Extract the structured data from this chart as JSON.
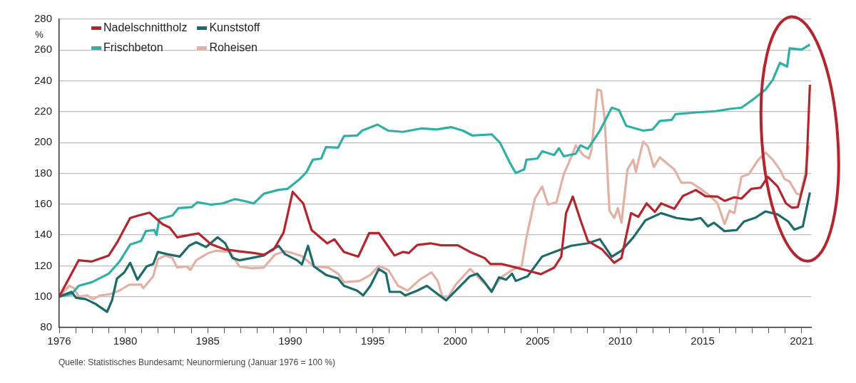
{
  "chart_data": {
    "type": "line",
    "ylabel": "%",
    "annotations": [
      "Quelle: Statistisches Bundesamt; Neunormierung (Januar 1976 = 100 %)"
    ],
    "xlim": [
      1976,
      2021.57
    ],
    "xticks": [
      1976,
      {
        "value": 1977,
        "label": null
      },
      {
        "value": 1978,
        "label": null
      },
      {
        "value": 1979,
        "label": null
      },
      1980,
      {
        "value": 1981,
        "label": null
      },
      {
        "value": 1982,
        "label": null
      },
      {
        "value": 1983,
        "label": null
      },
      {
        "value": 1984,
        "label": null
      },
      1985,
      {
        "value": 1986,
        "label": null
      },
      {
        "value": 1987,
        "label": null
      },
      {
        "value": 1988,
        "label": null
      },
      {
        "value": 1989,
        "label": null
      },
      1990,
      {
        "value": 1991,
        "label": null
      },
      {
        "value": 1992,
        "label": null
      },
      {
        "value": 1993,
        "label": null
      },
      {
        "value": 1994,
        "label": null
      },
      1995,
      {
        "value": 1996,
        "label": null
      },
      {
        "value": 1997,
        "label": null
      },
      {
        "value": 1998,
        "label": null
      },
      {
        "value": 1999,
        "label": null
      },
      2000,
      {
        "value": 2001,
        "label": null
      },
      {
        "value": 2002,
        "label": null
      },
      {
        "value": 2003,
        "label": null
      },
      {
        "value": 2004,
        "label": null
      },
      2005,
      {
        "value": 2006,
        "label": null
      },
      {
        "value": 2007,
        "label": null
      },
      {
        "value": 2008,
        "label": null
      },
      {
        "value": 2009,
        "label": null
      },
      2010,
      {
        "value": 2011,
        "label": null
      },
      {
        "value": 2012,
        "label": null
      },
      {
        "value": 2013,
        "label": null
      },
      {
        "value": 2014,
        "label": null
      },
      2015,
      {
        "value": 2016,
        "label": null
      },
      {
        "value": 2017,
        "label": null
      },
      {
        "value": 2018,
        "label": null
      },
      {
        "value": 2019,
        "label": null
      },
      {
        "value": 2020,
        "label": null
      },
      2021
    ],
    "ylim": [
      80,
      280
    ],
    "yticks": [
      80,
      100,
      120,
      140,
      160,
      180,
      200,
      220,
      240,
      260,
      280
    ],
    "grid": "y",
    "legend": "top left",
    "marker": "none",
    "line_style": "solid",
    "series": [
      {
        "name": "Nadelschnittholz",
        "color": "#b3262e",
        "x": [
          1976.0,
          1977.18,
          1977.98,
          1979.0,
          1979.5,
          1980.3,
          1980.8,
          1981.47,
          1982.27,
          1982.7,
          1983.15,
          1983.87,
          1984.45,
          1985.2,
          1986.06,
          1986.93,
          1987.8,
          1988.4,
          1989.0,
          1989.6,
          1990.15,
          1990.79,
          1991.3,
          1992.24,
          1992.68,
          1993.26,
          1994.13,
          1994.79,
          1995.37,
          1996.32,
          1996.83,
          1997.19,
          1997.7,
          1998.5,
          1999.16,
          2000.17,
          2000.9,
          2001.78,
          2002.14,
          2002.8,
          2003.52,
          2004.25,
          2005.2,
          2006.0,
          2006.43,
          2006.72,
          2007.13,
          2007.6,
          2008.04,
          2008.91,
          2009.64,
          2010.08,
          2010.66,
          2011.1,
          2011.6,
          2012.1,
          2012.48,
          2013.28,
          2013.79,
          2014.59,
          2015.17,
          2015.9,
          2016.33,
          2016.92,
          2017.35,
          2017.94,
          2018.52,
          2018.95,
          2019.54,
          2020.05,
          2020.41,
          2020.77,
          2021.28,
          2021.5
        ],
        "values": [
          100,
          123.6,
          122.8,
          126.7,
          135,
          151,
          152.6,
          154.5,
          147,
          144.8,
          138.5,
          140,
          141,
          134,
          130.6,
          129.4,
          128.3,
          127.2,
          130.6,
          141.6,
          168,
          160.5,
          143.2,
          134.6,
          137.2,
          129,
          126,
          141.3,
          141.3,
          126.7,
          129,
          128.3,
          133.5,
          134.6,
          133.3,
          133.3,
          129,
          125.1,
          121.2,
          121.2,
          119.3,
          117.3,
          114.6,
          118.8,
          126,
          154.2,
          164.9,
          149.5,
          136.1,
          130.6,
          122,
          125.1,
          154.2,
          151.8,
          160.5,
          155,
          160.5,
          157,
          165.2,
          169.2,
          165.2,
          164.9,
          162.1,
          164.5,
          163.6,
          169.9,
          170.7,
          177.8,
          171.5,
          160.5,
          157.7,
          158.1,
          179.4,
          237.5
        ]
      },
      {
        "name": "Kunststoff",
        "color": "#1b6b6b",
        "x": [
          1976.0,
          1976.74,
          1977.03,
          1977.6,
          1978.2,
          1978.9,
          1979.2,
          1979.5,
          1979.94,
          1980.3,
          1980.74,
          1981.3,
          1981.7,
          1981.98,
          1982.56,
          1983.3,
          1983.87,
          1984.3,
          1984.9,
          1985.6,
          1986.06,
          1986.5,
          1986.93,
          1987.66,
          1988.4,
          1988.8,
          1989.3,
          1989.7,
          1990.42,
          1990.71,
          1991.08,
          1991.44,
          1992.17,
          1992.9,
          1993.26,
          1994.06,
          1994.42,
          1994.86,
          1995.37,
          1995.81,
          1996.03,
          1996.68,
          1996.97,
          1997.7,
          1998.28,
          1998.86,
          1999.45,
          2000.03,
          2000.9,
          2001.34,
          2001.78,
          2002.21,
          2002.65,
          2003.09,
          2003.45,
          2003.67,
          2004.4,
          2005.27,
          2006.0,
          2007.02,
          2008.04,
          2008.77,
          2009.49,
          2010.08,
          2010.8,
          2011.53,
          2012.48,
          2013.42,
          2014.3,
          2014.88,
          2015.32,
          2015.68,
          2016.33,
          2017.06,
          2017.5,
          2018.23,
          2018.81,
          2019.54,
          2020.19,
          2020.56,
          2021.07,
          2021.5
        ],
        "values": [
          100,
          103.1,
          99.2,
          98.4,
          95.3,
          90.1,
          97.6,
          111.8,
          115.7,
          122,
          111,
          119.6,
          121.2,
          129,
          127.5,
          126,
          133,
          135.3,
          132.2,
          138.5,
          134.6,
          125.1,
          123.6,
          125.1,
          126.7,
          129.8,
          133,
          127.5,
          123.6,
          120.9,
          133,
          119.6,
          114.1,
          111.8,
          107,
          103.9,
          100.8,
          107,
          118,
          114.9,
          103.1,
          103.1,
          100.8,
          103.9,
          107,
          102.3,
          97.6,
          103.9,
          113.3,
          114.9,
          109.4,
          103.1,
          112.5,
          111,
          114.9,
          110.2,
          113.3,
          126,
          129,
          133,
          134.6,
          137.3,
          125.9,
          129.8,
          138.5,
          149.5,
          154.2,
          151,
          149.8,
          151,
          145.6,
          148,
          142.5,
          143.2,
          148.7,
          151.4,
          155.3,
          153.4,
          148.7,
          143.5,
          145.6,
          167.6
        ]
      },
      {
        "name": "Frischbeton",
        "color": "#2fb0a7",
        "x": [
          1976.0,
          1976.74,
          1977.18,
          1977.98,
          1979.0,
          1979.65,
          1980.3,
          1980.96,
          1981.25,
          1981.76,
          1981.9,
          1982.06,
          1982.86,
          1983.22,
          1984.02,
          1984.38,
          1985.2,
          1985.9,
          1986.64,
          1987.2,
          1987.8,
          1988.4,
          1989.26,
          1989.84,
          1990.57,
          1991.0,
          1991.37,
          1991.88,
          1992.17,
          1992.9,
          1993.26,
          1994.06,
          1994.35,
          1995.3,
          1995.95,
          1996.83,
          1997.99,
          1998.86,
          1999.74,
          2000.47,
          2001.05,
          2002.21,
          2002.72,
          2003.3,
          2003.67,
          2004.18,
          2004.32,
          2004.98,
          2005.27,
          2006.0,
          2006.29,
          2006.58,
          2007.3,
          2007.6,
          2008.04,
          2008.77,
          2009.49,
          2009.93,
          2010.37,
          2011.39,
          2011.97,
          2012.4,
          2013.13,
          2013.35,
          2014.59,
          2015.75,
          2016.63,
          2017.35,
          2018.08,
          2018.81,
          2019.25,
          2019.68,
          2020.12,
          2020.27,
          2021.0,
          2021.5
        ],
        "values": [
          100,
          101.6,
          107,
          109.4,
          114.9,
          122.7,
          133.8,
          136.1,
          142.5,
          143.2,
          140,
          150.3,
          152.6,
          157.4,
          158.1,
          161.3,
          159.7,
          160.5,
          163.3,
          162.1,
          160.5,
          166.8,
          169.2,
          170,
          176.2,
          181,
          188.8,
          189.6,
          197,
          196.7,
          204.2,
          204.5,
          207.7,
          211.6,
          207.7,
          206.9,
          209.2,
          208.5,
          210,
          207.7,
          204.5,
          205.3,
          199.8,
          187.2,
          180.2,
          182.5,
          188.8,
          189.6,
          194.3,
          191.9,
          196.3,
          191.1,
          192.7,
          198.2,
          195.9,
          207.7,
          222.6,
          221,
          210.8,
          207.7,
          208.5,
          214,
          214.7,
          218.4,
          219.5,
          220.3,
          221.8,
          222.6,
          228.1,
          234.4,
          240.7,
          251.7,
          249.3,
          261.1,
          260.3,
          263.5
        ]
      },
      {
        "name": "Roheisen",
        "color": "#e2b1a4",
        "x": [
          1976.0,
          1976.6,
          1976.89,
          1977.18,
          1977.69,
          1978.05,
          1978.49,
          1979.07,
          1979.65,
          1980.24,
          1980.96,
          1981.1,
          1981.7,
          1981.98,
          1982.42,
          1982.86,
          1983.15,
          1983.73,
          1983.95,
          1984.3,
          1985.04,
          1985.48,
          1986.35,
          1986.93,
          1987.66,
          1988.4,
          1989.1,
          1989.7,
          1990.13,
          1990.71,
          1991.44,
          1992.31,
          1992.9,
          1993.26,
          1994.21,
          1994.86,
          1995.37,
          1995.95,
          1996.54,
          1997.12,
          1997.85,
          1998.57,
          1998.94,
          1999.23,
          1999.59,
          2000.03,
          2000.9,
          2001.48,
          2002.21,
          2002.79,
          2003.45,
          2004.03,
          2004.32,
          2004.83,
          2005.27,
          2005.63,
          2006.14,
          2006.58,
          2007.09,
          2007.31,
          2007.75,
          2008.11,
          2008.26,
          2008.62,
          2008.84,
          2009.06,
          2009.35,
          2009.64,
          2009.86,
          2010.08,
          2010.44,
          2010.8,
          2010.95,
          2011.39,
          2011.68,
          2012.04,
          2012.4,
          2013.28,
          2013.71,
          2014.3,
          2014.88,
          2015.46,
          2015.9,
          2016.33,
          2016.63,
          2016.92,
          2017.35,
          2017.79,
          2018.37,
          2018.81,
          2019.25,
          2019.68,
          2019.97,
          2020.27,
          2020.7,
          2020.92,
          2021.21,
          2021.43
        ],
        "values": [
          100,
          107,
          105.5,
          100,
          100.8,
          98.4,
          100.8,
          101.6,
          103.9,
          107.8,
          107.8,
          105.5,
          113.3,
          124.3,
          126.7,
          125.1,
          118.9,
          119.6,
          117.3,
          123.6,
          128.3,
          129.8,
          129,
          119.6,
          118.4,
          118.9,
          127.5,
          129.4,
          128.3,
          126.3,
          119.6,
          118.9,
          114.9,
          109.4,
          110.2,
          114.1,
          119.9,
          117.3,
          107,
          103.9,
          111,
          115.7,
          110.2,
          100,
          100,
          107.8,
          118,
          111.8,
          103.9,
          112.5,
          117.3,
          119.9,
          138.5,
          163.6,
          171.5,
          159.7,
          161.3,
          179.4,
          191.9,
          198.2,
          192,
          189.6,
          195.1,
          234.4,
          233.6,
          215.5,
          155.8,
          151.1,
          157.4,
          147.9,
          182.5,
          188.8,
          180.9,
          200.6,
          197.5,
          184.1,
          190.4,
          182.5,
          173.9,
          173.9,
          169.9,
          165.2,
          160.5,
          147.1,
          155.8,
          154.2,
          177.8,
          179.4,
          188.8,
          193.5,
          188.8,
          182.5,
          176.2,
          174.7,
          166.8,
          166,
          179.4,
          198.2
        ]
      }
    ]
  }
}
